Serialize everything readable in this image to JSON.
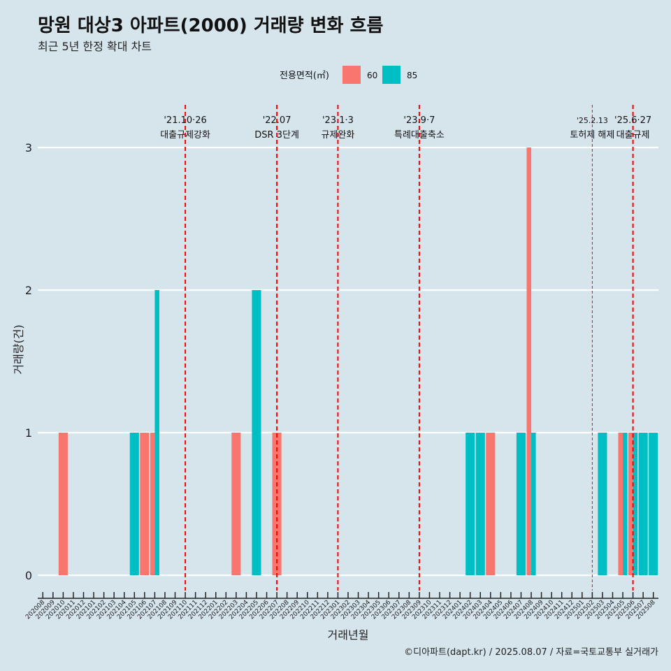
{
  "title": "망원 대상3 아파트(2000) 거래량 변화 흐름",
  "subtitle": "최근 5년 한정 확대 차트",
  "caption": "©디아파트(dapt.kr) / 2025.08.07 / 자료=국토교통부 실거래가",
  "chart_data": {
    "type": "bar",
    "xlabel": "거래년월",
    "ylabel": "거래량(건)",
    "ylim": [
      0,
      3
    ],
    "yticks": [
      0,
      1,
      2,
      3
    ],
    "grid": true,
    "legend": {
      "title": "전용면적(㎡)",
      "position": "top",
      "entries": [
        {
          "name": "60",
          "color": "#f8766d"
        },
        {
          "name": "85",
          "color": "#00bfc4"
        }
      ]
    },
    "categories": [
      "202008",
      "202009",
      "202010",
      "202011",
      "202012",
      "202101",
      "202102",
      "202103",
      "202104",
      "202105",
      "202106",
      "202107",
      "202108",
      "202109",
      "202110",
      "202111",
      "202112",
      "202201",
      "202202",
      "202203",
      "202204",
      "202205",
      "202206",
      "202207",
      "202208",
      "202209",
      "202210",
      "202211",
      "202212",
      "202301",
      "202302",
      "202303",
      "202304",
      "202305",
      "202306",
      "202307",
      "202308",
      "202309",
      "202310",
      "202311",
      "202312",
      "202401",
      "202402",
      "202403",
      "202404",
      "202405",
      "202406",
      "202407",
      "202408",
      "202409",
      "202410",
      "202411",
      "202412",
      "202501",
      "202502",
      "202503",
      "202504",
      "202505",
      "202506",
      "202507",
      "202508"
    ],
    "series": [
      {
        "name": "60",
        "color": "#f8766d",
        "values": [
          0,
          0,
          1,
          0,
          0,
          0,
          0,
          0,
          0,
          0,
          1,
          1,
          0,
          0,
          0,
          0,
          0,
          0,
          0,
          1,
          0,
          0,
          0,
          1,
          0,
          0,
          0,
          0,
          0,
          0,
          0,
          0,
          0,
          0,
          0,
          0,
          0,
          0,
          0,
          0,
          0,
          0,
          0,
          0,
          1,
          0,
          0,
          0,
          3,
          0,
          0,
          0,
          0,
          0,
          0,
          0,
          0,
          1,
          1,
          0,
          0
        ]
      },
      {
        "name": "85",
        "color": "#00bfc4",
        "values": [
          0,
          0,
          0,
          0,
          0,
          0,
          0,
          0,
          0,
          1,
          0,
          2,
          0,
          0,
          0,
          0,
          0,
          0,
          0,
          0,
          0,
          2,
          0,
          0,
          0,
          0,
          0,
          0,
          0,
          0,
          0,
          0,
          0,
          0,
          0,
          0,
          0,
          0,
          0,
          0,
          0,
          0,
          1,
          1,
          0,
          0,
          0,
          1,
          1,
          0,
          0,
          0,
          0,
          0,
          0,
          1,
          0,
          1,
          1,
          1,
          1
        ]
      }
    ],
    "annotations": [
      {
        "x": "202110",
        "date": "'21.10·26",
        "label": "대출규제강화",
        "thin": false
      },
      {
        "x": "202207",
        "date": "'22.07",
        "label": "DSR 3단계",
        "thin": false
      },
      {
        "x": "202301",
        "date": "'23.1·3",
        "label": "규제완화",
        "thin": false
      },
      {
        "x": "202309",
        "date": "'23.9·7",
        "label": "특례대출축소",
        "thin": false
      },
      {
        "x": "202502",
        "date": "'25.2.13",
        "label": "토허제 해제",
        "thin": true
      },
      {
        "x": "202506",
        "date": "'25.6·27",
        "label": "대출규제",
        "thin": false
      }
    ],
    "annotation_color": "#ff0000"
  }
}
